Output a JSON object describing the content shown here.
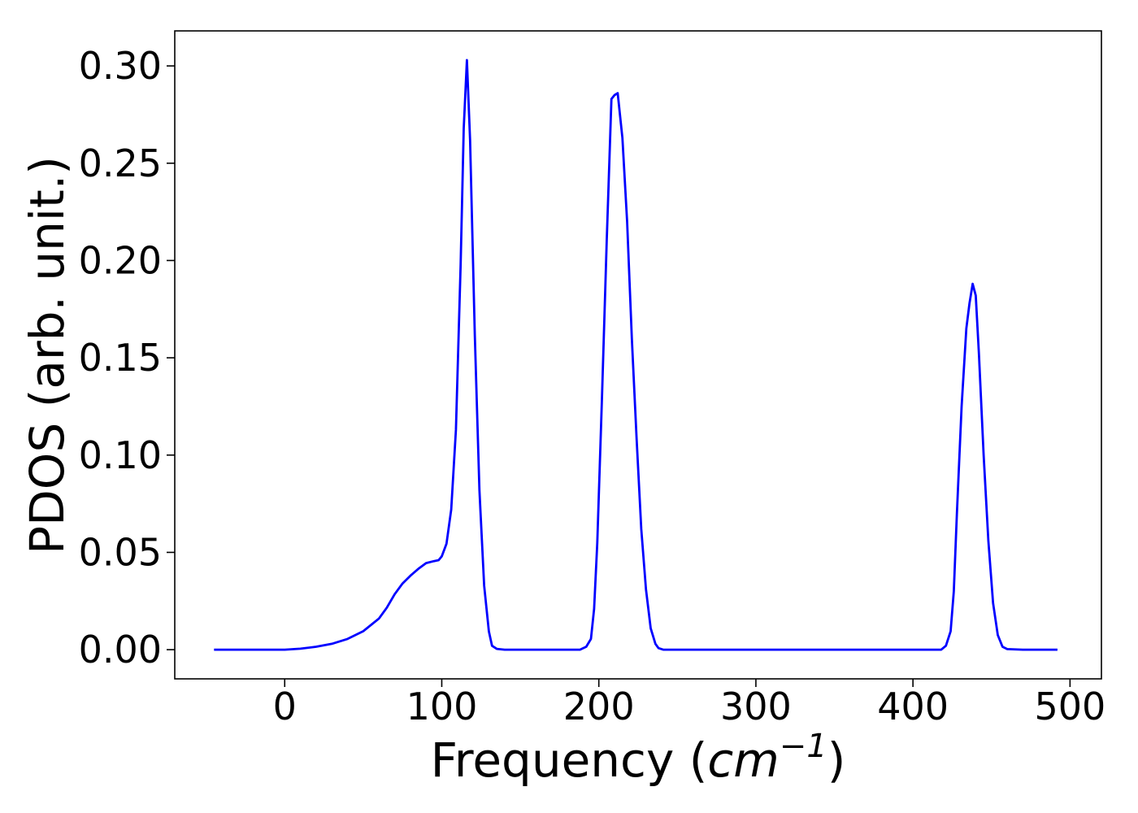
{
  "chart_data": {
    "type": "line",
    "xlabel_prefix": "Frequency (",
    "xlabel_math_base": "cm",
    "xlabel_math_sup": "−1",
    "xlabel_suffix": ")",
    "ylabel": "PDOS (arb. unit.)",
    "xlim": [
      -70,
      520
    ],
    "ylim": [
      -0.015,
      0.318
    ],
    "xticks": [
      0,
      100,
      200,
      300,
      400,
      500
    ],
    "xtick_labels": [
      "0",
      "100",
      "200",
      "300",
      "400",
      "500"
    ],
    "yticks": [
      0.0,
      0.05,
      0.1,
      0.15,
      0.2,
      0.25,
      0.3
    ],
    "ytick_labels": [
      "0.00",
      "0.05",
      "0.10",
      "0.15",
      "0.20",
      "0.25",
      "0.30"
    ],
    "grid": false,
    "line_color": "#0000ff",
    "series": [
      {
        "x": [
          -45,
          -20,
          0,
          10,
          20,
          30,
          40,
          50,
          60,
          65,
          70,
          75,
          80,
          85,
          90,
          95,
          98,
          100,
          103,
          106,
          109,
          112,
          114,
          116,
          118,
          121,
          124,
          127,
          130,
          132,
          135,
          140,
          150,
          170,
          188,
          192,
          195,
          197,
          199,
          202,
          205,
          208,
          210,
          212,
          215,
          218,
          221,
          224,
          227,
          230,
          233,
          236,
          238,
          241,
          250,
          300,
          350,
          400,
          418,
          421,
          424,
          426,
          428,
          431,
          434,
          436,
          438,
          440,
          442,
          445,
          448,
          451,
          454,
          457,
          460,
          470,
          492
        ],
        "y": [
          0.0,
          0.0,
          0.0,
          0.0005,
          0.0015,
          0.003,
          0.0055,
          0.0095,
          0.016,
          0.0215,
          0.0285,
          0.034,
          0.038,
          0.0415,
          0.0445,
          0.0455,
          0.046,
          0.048,
          0.0545,
          0.072,
          0.113,
          0.198,
          0.268,
          0.303,
          0.262,
          0.162,
          0.082,
          0.033,
          0.0095,
          0.002,
          0.0004,
          0.0,
          0.0,
          0.0,
          0.0,
          0.0015,
          0.0055,
          0.021,
          0.055,
          0.13,
          0.21,
          0.283,
          0.285,
          0.286,
          0.263,
          0.22,
          0.16,
          0.109,
          0.062,
          0.031,
          0.011,
          0.003,
          0.0008,
          0.0,
          0.0,
          0.0,
          0.0,
          0.0,
          0.0,
          0.002,
          0.0095,
          0.03,
          0.07,
          0.125,
          0.165,
          0.178,
          0.188,
          0.182,
          0.152,
          0.1,
          0.056,
          0.024,
          0.0075,
          0.0015,
          0.0003,
          0.0,
          0.0
        ]
      }
    ]
  }
}
